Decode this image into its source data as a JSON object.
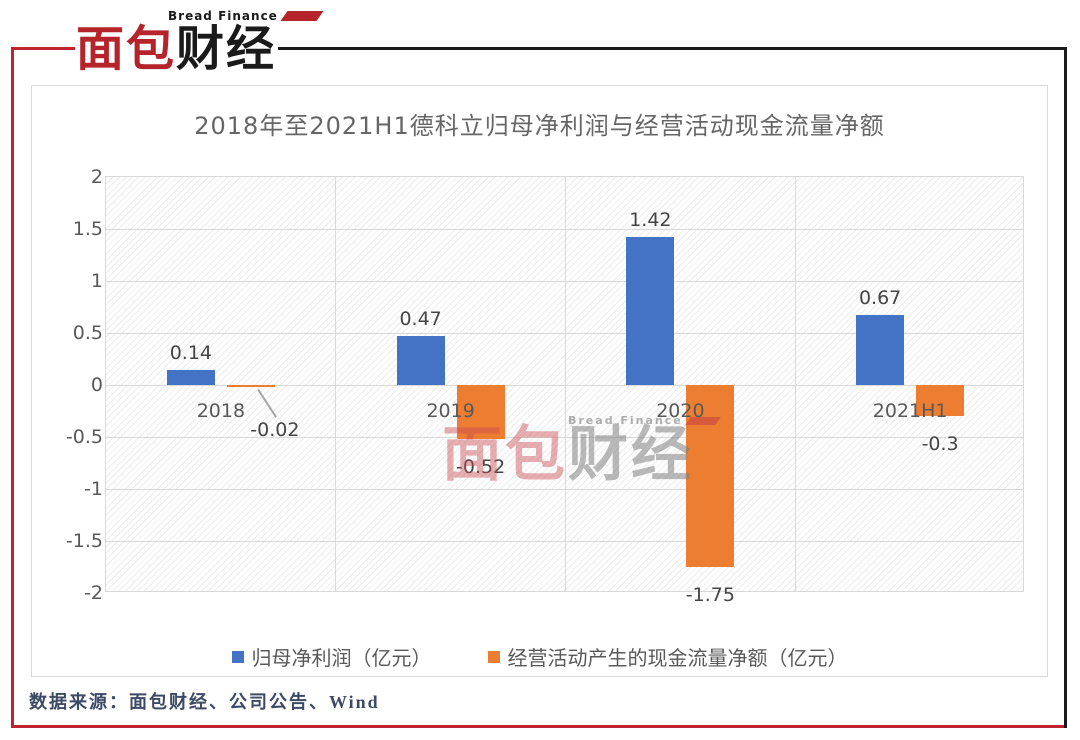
{
  "header": {
    "brand_en": "Bread Finance",
    "brand_zh_first": "面包",
    "brand_zh_second": "财经"
  },
  "watermark": {
    "brand_en": "Bread Finance",
    "zh_first": "面包",
    "zh_second": "财经"
  },
  "footer": {
    "source_note": "数据来源：面包财经、公司公告、Wind"
  },
  "colors": {
    "brand_red": "#b5232b",
    "frame_red": "#c1232e",
    "frame_black": "#1a1a1a",
    "series_blue": "#4472C4",
    "series_orange": "#ED7D31",
    "gridline": "#d9d9d9"
  },
  "chart_data": {
    "type": "bar",
    "title": "2018年至2021H1德科立归母净利润与经营活动现金流量净额",
    "categories": [
      "2018",
      "2019",
      "2020",
      "2021H1"
    ],
    "series": [
      {
        "name": "归母净利润（亿元）",
        "color": "#4472C4",
        "values": [
          0.14,
          0.47,
          1.42,
          0.67
        ],
        "labels": [
          "0.14",
          "0.47",
          "1.42",
          "0.67"
        ]
      },
      {
        "name": "经营活动产生的现金流量净额（亿元）",
        "color": "#ED7D31",
        "values": [
          -0.02,
          -0.52,
          -1.75,
          -0.3
        ],
        "labels": [
          "-0.02",
          "-0.52",
          "-1.75",
          "-0.3"
        ]
      }
    ],
    "ylim": [
      -2,
      2
    ],
    "ytick_step": 0.5,
    "ytick_labels": [
      "2",
      "1.5",
      "1",
      "0.5",
      "0",
      "-0.5",
      "-1",
      "-1.5",
      "-2"
    ],
    "grid": true,
    "legend_position": "bottom",
    "plot_background": "diagonal-hatch"
  }
}
